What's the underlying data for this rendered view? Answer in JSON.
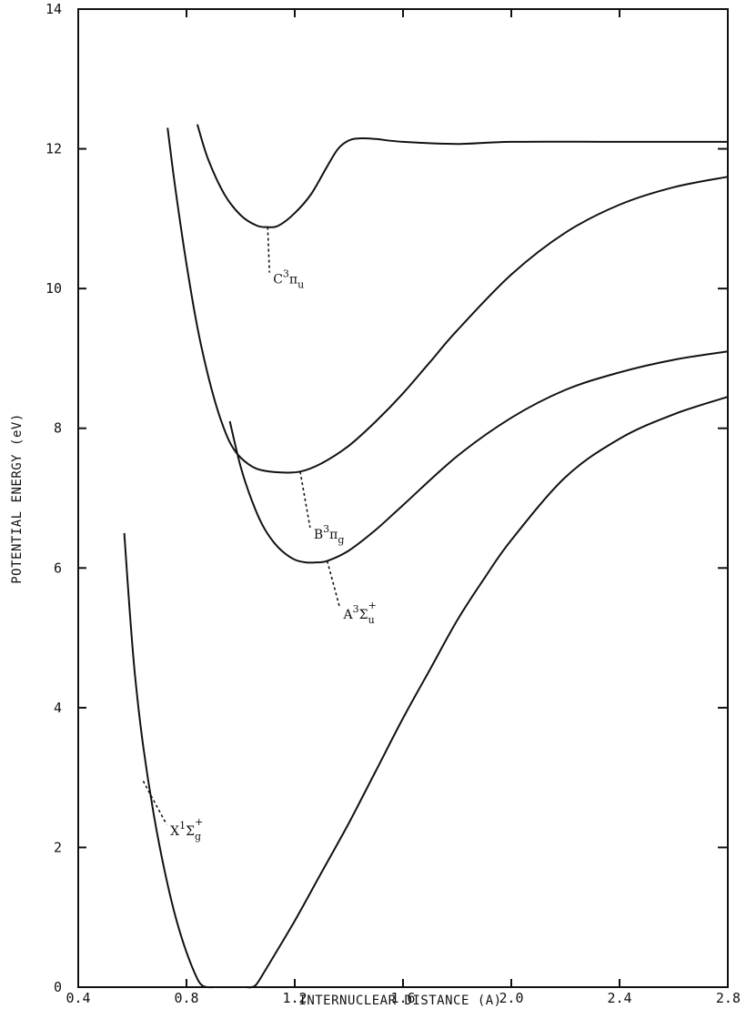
{
  "chart_data": {
    "type": "line",
    "title": "",
    "xlabel": "INTERNUCLEAR DISTANCE (A)",
    "ylabel": "POTENTIAL ENERGY (eV)",
    "xlim": [
      0.4,
      2.8
    ],
    "ylim": [
      0,
      14
    ],
    "x_ticks": [
      "0.4",
      "0.8",
      "1.2",
      "1.6",
      "2.0",
      "2.4",
      "2.8"
    ],
    "y_ticks": [
      "0",
      "2",
      "4",
      "6",
      "8",
      "10",
      "12",
      "14"
    ],
    "grid": false,
    "series": [
      {
        "id": "C3Pu",
        "x": [
          0.84,
          0.88,
          0.94,
          1.0,
          1.06,
          1.1,
          1.14,
          1.2,
          1.26,
          1.32,
          1.36,
          1.4,
          1.44,
          1.5,
          1.6,
          1.8,
          2.0,
          2.4,
          2.8
        ],
        "y": [
          12.35,
          11.85,
          11.35,
          11.05,
          10.9,
          10.88,
          10.9,
          11.08,
          11.35,
          11.75,
          12.0,
          12.12,
          12.15,
          12.14,
          12.1,
          12.07,
          12.1,
          12.1,
          12.1
        ]
      },
      {
        "id": "B3Pg",
        "x": [
          0.73,
          0.76,
          0.8,
          0.84,
          0.88,
          0.92,
          0.96,
          1.0,
          1.06,
          1.14,
          1.22,
          1.3,
          1.4,
          1.5,
          1.6,
          1.7,
          1.8,
          2.0,
          2.2,
          2.4,
          2.6,
          2.8
        ],
        "y": [
          12.3,
          11.4,
          10.35,
          9.45,
          8.75,
          8.2,
          7.8,
          7.58,
          7.42,
          7.37,
          7.38,
          7.5,
          7.75,
          8.1,
          8.5,
          8.95,
          9.4,
          10.2,
          10.8,
          11.2,
          11.45,
          11.6
        ]
      },
      {
        "id": "A3Su+",
        "x": [
          0.96,
          1.0,
          1.04,
          1.08,
          1.12,
          1.16,
          1.2,
          1.24,
          1.28,
          1.32,
          1.4,
          1.5,
          1.6,
          1.8,
          2.0,
          2.2,
          2.4,
          2.6,
          2.8
        ],
        "y": [
          8.1,
          7.45,
          6.98,
          6.62,
          6.38,
          6.22,
          6.12,
          6.08,
          6.08,
          6.1,
          6.25,
          6.55,
          6.9,
          7.6,
          8.15,
          8.55,
          8.8,
          8.98,
          9.1
        ]
      },
      {
        "id": "X1Sg+",
        "x": [
          0.57,
          0.59,
          0.61,
          0.64,
          0.68,
          0.72,
          0.76,
          0.8,
          0.84,
          0.86,
          0.88,
          0.9,
          0.92,
          0.96,
          1.0,
          1.02,
          1.04,
          1.06,
          1.1,
          1.2,
          1.3,
          1.4,
          1.5,
          1.6,
          1.7,
          1.8,
          1.9,
          2.0,
          2.2,
          2.4,
          2.6,
          2.8
        ],
        "y": [
          6.5,
          5.4,
          4.45,
          3.45,
          2.45,
          1.65,
          1.0,
          0.5,
          0.12,
          0.02,
          0.0,
          0.0,
          0.0,
          0.0,
          0.0,
          0.0,
          0.0,
          0.05,
          0.3,
          0.95,
          1.65,
          2.35,
          3.1,
          3.85,
          4.55,
          5.25,
          5.85,
          6.4,
          7.3,
          7.85,
          8.2,
          8.45
        ]
      }
    ],
    "annotations": [
      {
        "series": "C3Pu",
        "main": "C",
        "sup": "3",
        "sym": "π",
        "sub": "u",
        "at": [
          1.1,
          10.88
        ],
        "text_at": [
          1.12,
          10.15
        ]
      },
      {
        "series": "B3Pg",
        "main": "B",
        "sup": "3",
        "sym": "π",
        "sub": "g",
        "at": [
          1.22,
          7.38
        ],
        "text_at": [
          1.27,
          6.5
        ]
      },
      {
        "series": "A3Su+",
        "main": "A",
        "sup": "3",
        "sym": "Σ",
        "sub": "u",
        "supR": "+",
        "at": [
          1.32,
          6.1
        ],
        "text_at": [
          1.38,
          5.35
        ]
      },
      {
        "series": "X1Sg+",
        "main": "X",
        "sup": "1",
        "sym": "Σ",
        "sub": "g",
        "supR": "+",
        "at": [
          0.64,
          2.95
        ],
        "text_at": [
          0.74,
          2.25
        ]
      }
    ]
  }
}
